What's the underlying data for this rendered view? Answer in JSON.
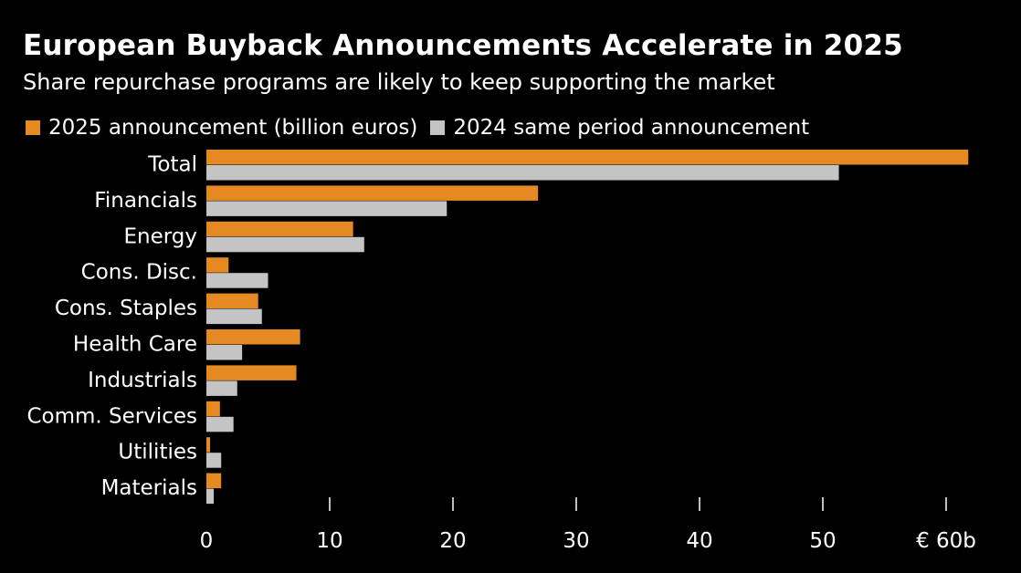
{
  "header": {
    "title": "European Buyback Announcements Accelerate in 2025",
    "subtitle": "Share repurchase programs are likely to keep supporting the market"
  },
  "colors": {
    "series_2025": "#E58A23",
    "series_2024": "#C4C4C4",
    "background": "#000000",
    "text": "#FFFFFF",
    "tick": "#FFFFFF"
  },
  "chart_data": {
    "type": "bar",
    "orientation": "horizontal",
    "categories": [
      "Total",
      "Financials",
      "Energy",
      "Cons. Disc.",
      "Cons. Staples",
      "Health Care",
      "Industrials",
      "Comm. Services",
      "Utilities",
      "Materials"
    ],
    "series": [
      {
        "name": "2025 announcement (billion euros)",
        "values": [
          61.8,
          26.9,
          11.9,
          1.8,
          4.2,
          7.6,
          7.3,
          1.1,
          0.3,
          1.2
        ]
      },
      {
        "name": "2024 same period announcement",
        "values": [
          51.3,
          19.5,
          12.8,
          5.0,
          4.5,
          2.9,
          2.5,
          2.2,
          1.2,
          0.6
        ]
      }
    ],
    "xlim": [
      0,
      63
    ],
    "xticks": [
      0,
      10,
      20,
      30,
      40,
      50,
      60
    ],
    "xtick_labels": [
      "0",
      "10",
      "20",
      "30",
      "40",
      "50",
      "€ 60b"
    ],
    "legend_position": "top-left",
    "grid": false
  }
}
